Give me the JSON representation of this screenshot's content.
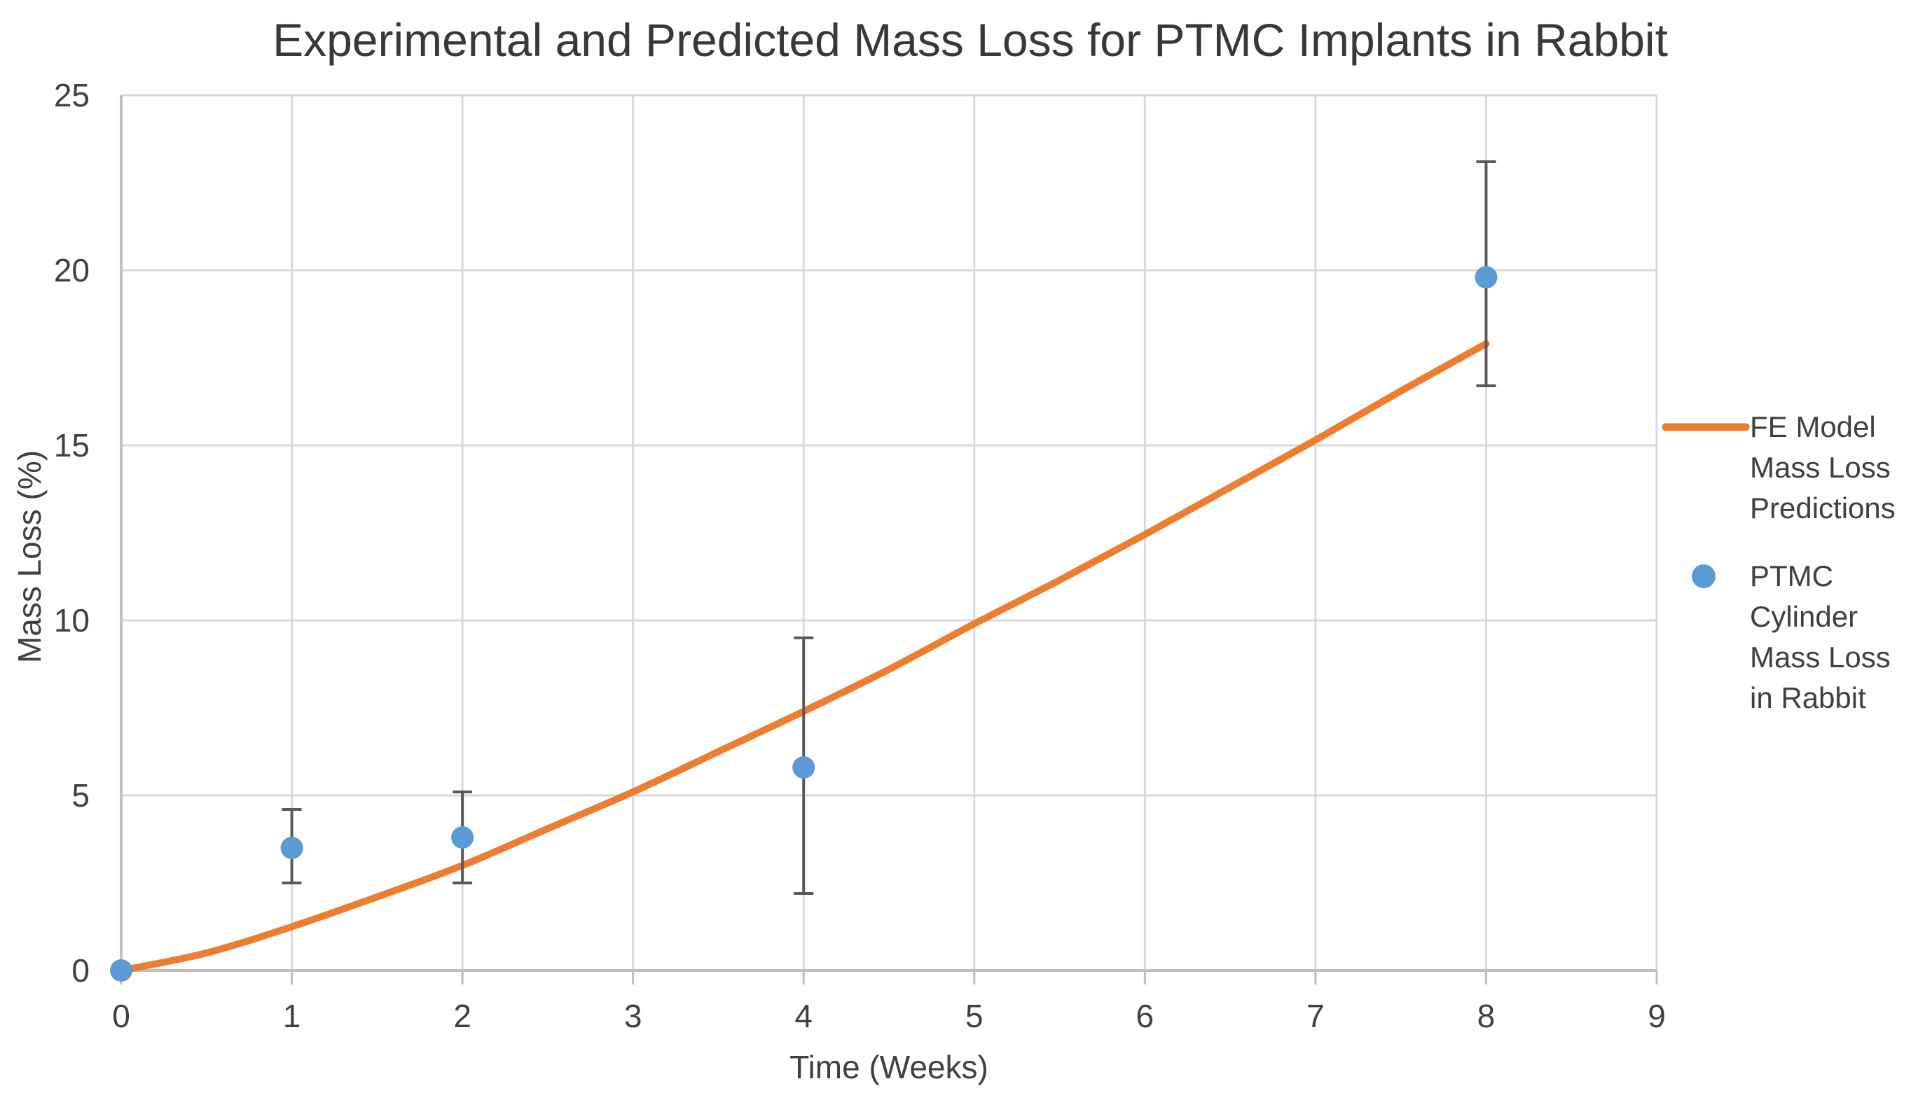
{
  "chart_data": {
    "type": "line",
    "title": "Experimental and Predicted Mass Loss for PTMC Implants in Rabbit",
    "xlabel": "Time (Weeks)",
    "ylabel": "Mass Loss (%)",
    "xlim": [
      0,
      9
    ],
    "ylim": [
      0,
      25
    ],
    "xticks": [
      0,
      1,
      2,
      3,
      4,
      5,
      6,
      7,
      8,
      9
    ],
    "yticks": [
      0,
      5,
      10,
      15,
      20,
      25
    ],
    "grid": true,
    "legend_position": "right",
    "series": [
      {
        "name": "FE Model Mass Loss Predictions",
        "type": "line",
        "color": "#ED7D31",
        "x": [
          0,
          0.5,
          1,
          1.5,
          2,
          2.5,
          3,
          3.5,
          4,
          4.5,
          5,
          5.5,
          6,
          6.5,
          7,
          7.5,
          8
        ],
        "y": [
          0,
          0.5,
          1.25,
          2.1,
          3.0,
          4.05,
          5.1,
          6.25,
          7.4,
          8.6,
          9.9,
          11.15,
          12.45,
          13.8,
          15.15,
          16.55,
          17.9
        ]
      },
      {
        "name": "PTMC Cylinder Mass Loss in Rabbit",
        "type": "scatter",
        "color": "#5B9BD5",
        "x": [
          0,
          1,
          2,
          4,
          8
        ],
        "y": [
          0,
          3.5,
          3.8,
          5.8,
          19.8
        ],
        "y_err_low": [
          null,
          2.5,
          2.5,
          2.2,
          16.7
        ],
        "y_err_high": [
          null,
          4.6,
          5.1,
          9.5,
          23.1
        ]
      }
    ]
  },
  "legend": {
    "item1_label": "FE Model\nMass Loss\nPredictions",
    "item2_label": "PTMC\nCylinder\nMass Loss\nin Rabbit"
  },
  "colors": {
    "line": "#ED7D31",
    "marker": "#5B9BD5",
    "gridline": "#D9D9D9",
    "axis": "#BFBFBF",
    "error_bar": "#595959",
    "text": "#404040"
  }
}
